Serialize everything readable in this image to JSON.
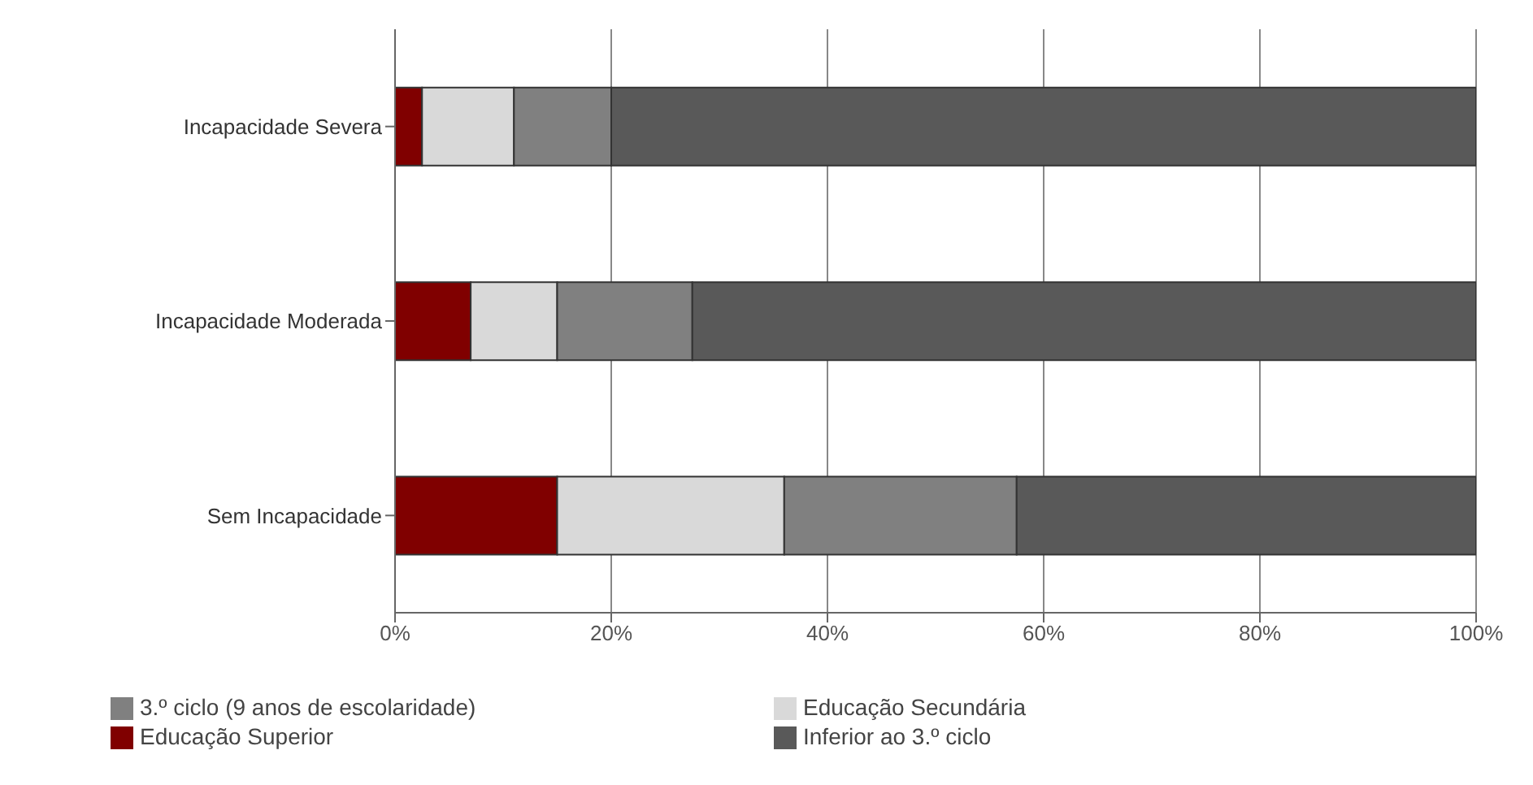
{
  "chart_data": {
    "type": "bar",
    "orientation": "horizontal",
    "stacked": true,
    "categories": [
      "Incapacidade Severa",
      "Incapacidade Moderada",
      "Sem Incapacidade"
    ],
    "series": [
      {
        "name": "Educação Superior",
        "color": "#800000",
        "values": [
          2.5,
          7,
          15
        ]
      },
      {
        "name": "Educação Secundária",
        "color": "#d9d9d9",
        "values": [
          8.5,
          8,
          21
        ]
      },
      {
        "name": "3.º ciclo (9 anos de escolaridade)",
        "color": "#808080",
        "values": [
          9,
          12.5,
          21.5
        ]
      },
      {
        "name": "Inferior ao 3.º ciclo",
        "color": "#595959",
        "values": [
          80,
          72.5,
          42.5
        ]
      }
    ],
    "xlim": [
      0,
      100
    ],
    "xticks": [
      {
        "value": 0,
        "label": "0%"
      },
      {
        "value": 20,
        "label": "20%"
      },
      {
        "value": 40,
        "label": "40%"
      },
      {
        "value": 60,
        "label": "60%"
      },
      {
        "value": 80,
        "label": "80%"
      },
      {
        "value": 100,
        "label": "100%"
      }
    ],
    "grid": "x",
    "legend": "bottom"
  }
}
